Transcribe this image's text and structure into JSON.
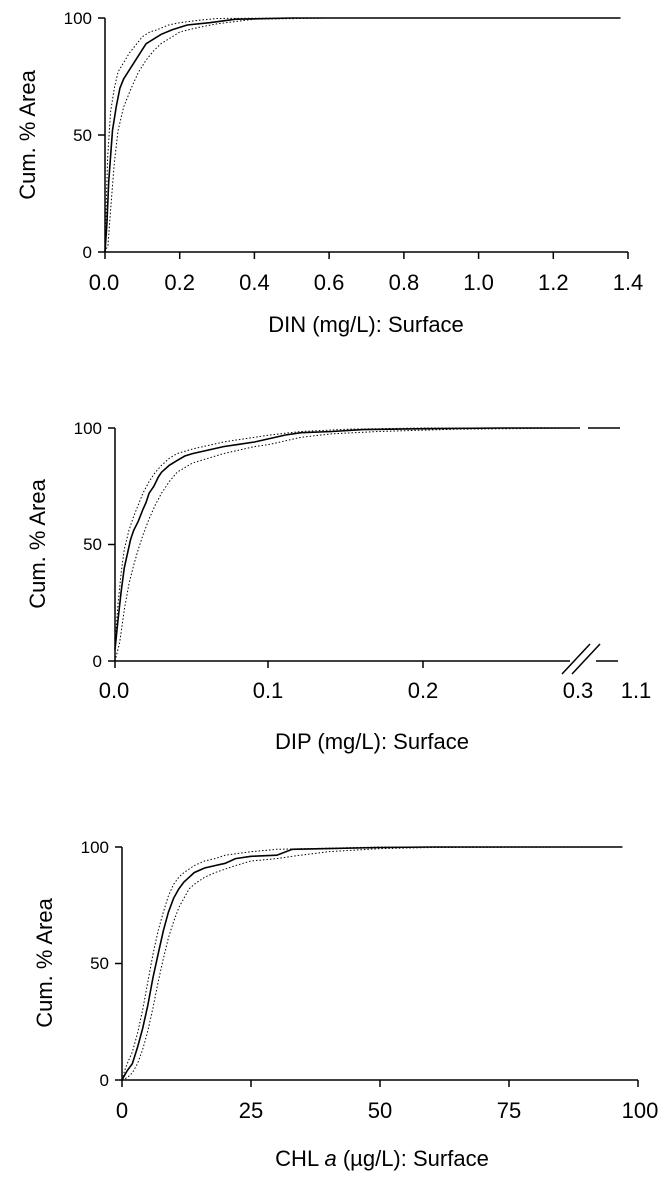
{
  "chart_data": [
    {
      "type": "line",
      "xlabel": "DIN (mg/L): Surface",
      "ylabel": "Cum. % Area",
      "xlim": [
        0,
        1.4
      ],
      "ylim": [
        0,
        100
      ],
      "x_ticks": [
        "0.0",
        "0.2",
        "0.4",
        "0.6",
        "0.8",
        "1.0",
        "1.2",
        "1.4"
      ],
      "y_ticks": [
        "0",
        "50",
        "100"
      ],
      "series": [
        {
          "style": "solid",
          "x": [
            0.0,
            0.005,
            0.01,
            0.02,
            0.03,
            0.04,
            0.05,
            0.07,
            0.09,
            0.11,
            0.13,
            0.15,
            0.18,
            0.22,
            0.28,
            0.35,
            0.5,
            0.8,
            1.2,
            1.38
          ],
          "y": [
            0,
            12,
            30,
            52,
            62,
            70,
            74,
            79,
            84,
            89,
            91,
            93,
            95,
            97,
            98,
            99.5,
            100,
            100,
            100,
            100
          ]
        },
        {
          "style": "dotted",
          "x": [
            0.0,
            0.003,
            0.007,
            0.015,
            0.025,
            0.035,
            0.05,
            0.065,
            0.08,
            0.1,
            0.12,
            0.14,
            0.17,
            0.2,
            0.25,
            0.3,
            0.5,
            1.38
          ],
          "y": [
            0,
            18,
            40,
            60,
            70,
            77,
            81,
            85,
            88,
            92,
            94,
            95,
            97,
            98,
            99,
            99.8,
            100,
            100
          ]
        },
        {
          "style": "dotted",
          "x": [
            0.0,
            0.008,
            0.015,
            0.025,
            0.035,
            0.05,
            0.07,
            0.09,
            0.11,
            0.13,
            0.15,
            0.17,
            0.2,
            0.25,
            0.3,
            0.4,
            0.6,
            1.38
          ],
          "y": [
            0,
            3,
            18,
            38,
            52,
            62,
            70,
            77,
            82,
            86,
            89,
            91,
            94,
            96,
            97.5,
            99.5,
            100,
            100
          ]
        }
      ]
    },
    {
      "type": "line",
      "xlabel": "DIP (mg/L): Surface",
      "ylabel": "Cum. % Area",
      "xlim": [
        0,
        0.3
      ],
      "ylim": [
        0,
        100
      ],
      "axis_break": [
        0.3,
        1.1
      ],
      "x_ticks": [
        "0.0",
        "0.1",
        "0.2",
        "0.3",
        "1.1"
      ],
      "y_ticks": [
        "0",
        "50",
        "100"
      ],
      "series": [
        {
          "style": "solid",
          "x": [
            0.0,
            0.002,
            0.004,
            0.006,
            0.008,
            0.01,
            0.012,
            0.015,
            0.018,
            0.02,
            0.022,
            0.025,
            0.028,
            0.03,
            0.035,
            0.04,
            0.045,
            0.05,
            0.06,
            0.07,
            0.08,
            0.09,
            0.1,
            0.11,
            0.12,
            0.14,
            0.16,
            0.2,
            0.25,
            0.3
          ],
          "y": [
            5,
            18,
            30,
            40,
            46,
            52,
            56,
            60,
            65,
            68,
            72,
            75,
            79,
            81,
            84,
            86,
            88,
            89,
            90.5,
            92,
            93,
            94,
            95.5,
            97,
            98,
            98.5,
            99.3,
            99.7,
            100,
            100
          ]
        },
        {
          "style": "dotted",
          "x": [
            0.0,
            0.002,
            0.004,
            0.006,
            0.009,
            0.012,
            0.015,
            0.018,
            0.022,
            0.026,
            0.03,
            0.035,
            0.04,
            0.05,
            0.06,
            0.07,
            0.08,
            0.09,
            0.1,
            0.12,
            0.15,
            0.2,
            0.3
          ],
          "y": [
            8,
            25,
            38,
            48,
            56,
            62,
            67,
            72,
            77,
            81,
            84,
            87,
            89,
            91,
            92.5,
            94,
            95,
            96,
            97,
            98.5,
            99.5,
            100,
            100
          ]
        },
        {
          "style": "dotted",
          "x": [
            0.0,
            0.003,
            0.006,
            0.009,
            0.012,
            0.015,
            0.018,
            0.022,
            0.026,
            0.03,
            0.035,
            0.04,
            0.05,
            0.06,
            0.07,
            0.08,
            0.09,
            0.1,
            0.11,
            0.12,
            0.14,
            0.17,
            0.22,
            0.3
          ],
          "y": [
            0,
            8,
            22,
            33,
            41,
            48,
            54,
            61,
            67,
            72,
            77,
            81,
            85,
            87,
            89,
            90.5,
            92,
            93,
            94.5,
            96,
            97.5,
            98.5,
            99.5,
            100
          ]
        }
      ],
      "break_segment": {
        "x": [
          1.03,
          1.1
        ],
        "y": [
          100,
          100
        ]
      }
    },
    {
      "type": "line",
      "xlabel": "CHL a (µg/L): Surface",
      "ylabel": "Cum. % Area",
      "xlim": [
        0,
        100
      ],
      "ylim": [
        0,
        100
      ],
      "x_ticks": [
        "0",
        "25",
        "50",
        "75",
        "100"
      ],
      "y_ticks": [
        "0",
        "50",
        "100"
      ],
      "series": [
        {
          "style": "solid",
          "x": [
            0,
            0.5,
            1,
            2,
            3,
            4,
            5,
            6,
            7,
            8,
            9,
            10,
            11,
            12,
            13,
            14,
            16,
            18,
            20,
            22,
            25,
            30,
            33,
            40,
            50,
            60,
            80,
            97
          ],
          "y": [
            0,
            2,
            4,
            7,
            14,
            22,
            32,
            44,
            54,
            64,
            72,
            78,
            82,
            85,
            87,
            89,
            91,
            92,
            93,
            95,
            96,
            96.5,
            99,
            99.3,
            99.8,
            100,
            100,
            100
          ]
        },
        {
          "style": "dotted",
          "x": [
            0,
            0.5,
            1,
            2,
            3,
            4,
            5,
            6,
            7,
            8,
            9,
            10,
            11,
            12,
            14,
            16,
            18,
            20,
            25,
            30,
            40,
            50,
            97
          ],
          "y": [
            0,
            4,
            7,
            12,
            20,
            30,
            42,
            54,
            64,
            72,
            79,
            84,
            87,
            89,
            92,
            94,
            95,
            96.5,
            98,
            99,
            99.5,
            100,
            100
          ]
        },
        {
          "style": "dotted",
          "x": [
            0,
            1,
            2,
            3,
            4,
            5,
            6,
            7,
            8,
            9,
            10,
            11,
            12,
            13,
            14,
            16,
            18,
            20,
            22,
            25,
            30,
            33,
            40,
            50,
            60,
            97
          ],
          "y": [
            0,
            1,
            3,
            7,
            13,
            21,
            31,
            42,
            52,
            61,
            68,
            74,
            78,
            82,
            84,
            87,
            89,
            90.5,
            92,
            94,
            95,
            96,
            98,
            99.3,
            99.8,
            100
          ]
        }
      ]
    }
  ]
}
